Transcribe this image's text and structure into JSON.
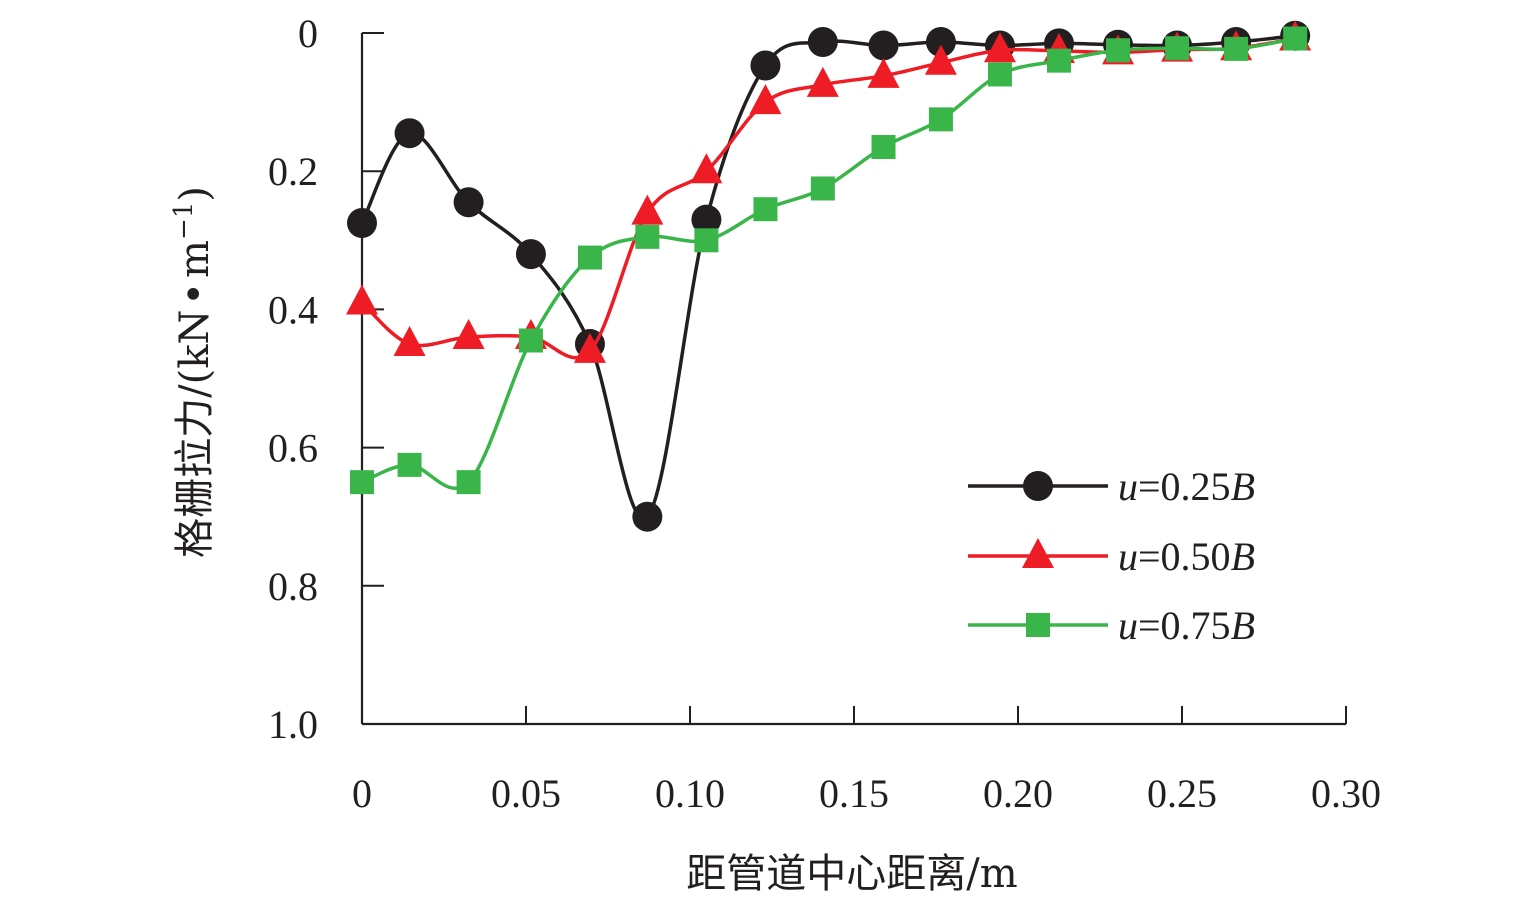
{
  "chart_data": {
    "type": "line",
    "title": "",
    "xlabel": "距管道中心距离/m",
    "ylabel": "格栅拉力/(kN·m⁻¹)",
    "ylabel_parts": {
      "main": "格栅拉力/(kN",
      "dot": "•",
      "unit": "m",
      "sup": "−1",
      "close": ")"
    },
    "xlim": [
      0,
      0.3
    ],
    "ylim": [
      0,
      1.0
    ],
    "y_inverted": true,
    "x_ticks": [
      "0",
      "0.05",
      "0.10",
      "0.15",
      "0.20",
      "0.25",
      "0.30"
    ],
    "x_tick_values": [
      0,
      0.05,
      0.1,
      0.15,
      0.2,
      0.25,
      0.3
    ],
    "y_ticks": [
      "0",
      "0.2",
      "0.4",
      "0.6",
      "0.8",
      "1.0"
    ],
    "y_tick_values": [
      0,
      0.2,
      0.4,
      0.6,
      0.8,
      1.0
    ],
    "grid": false,
    "legend_position": "right",
    "x": [
      0.0,
      0.0145,
      0.0325,
      0.0515,
      0.0695,
      0.087,
      0.105,
      0.123,
      0.1405,
      0.159,
      0.1765,
      0.1945,
      0.2125,
      0.2305,
      0.2485,
      0.2665,
      0.2845
    ],
    "series": [
      {
        "name": "u=0.25B",
        "legend_italic": "u",
        "legend_rest": "=0.25",
        "legend_suffix": "B",
        "color": "#231f20",
        "marker": "circle",
        "values": [
          0.275,
          0.145,
          0.245,
          0.32,
          0.45,
          0.7,
          0.27,
          0.047,
          0.013,
          0.018,
          0.013,
          0.018,
          0.015,
          0.017,
          0.018,
          0.013,
          0.004
        ]
      },
      {
        "name": "u=0.50B",
        "legend_italic": "u",
        "legend_rest": "=0.50",
        "legend_suffix": "B",
        "color": "#ee1c25",
        "marker": "triangle",
        "values": [
          0.39,
          0.45,
          0.44,
          0.44,
          0.46,
          0.26,
          0.2,
          0.1,
          0.075,
          0.062,
          0.043,
          0.025,
          0.026,
          0.028,
          0.024,
          0.022,
          0.008
        ]
      },
      {
        "name": "u=0.75B",
        "legend_italic": "u",
        "legend_rest": "=0.75",
        "legend_suffix": "B",
        "color": "#39b54a",
        "marker": "square",
        "values": [
          0.65,
          0.625,
          0.65,
          0.445,
          0.325,
          0.295,
          0.3,
          0.255,
          0.225,
          0.165,
          0.125,
          0.06,
          0.04,
          0.025,
          0.022,
          0.023,
          0.008
        ]
      }
    ]
  }
}
